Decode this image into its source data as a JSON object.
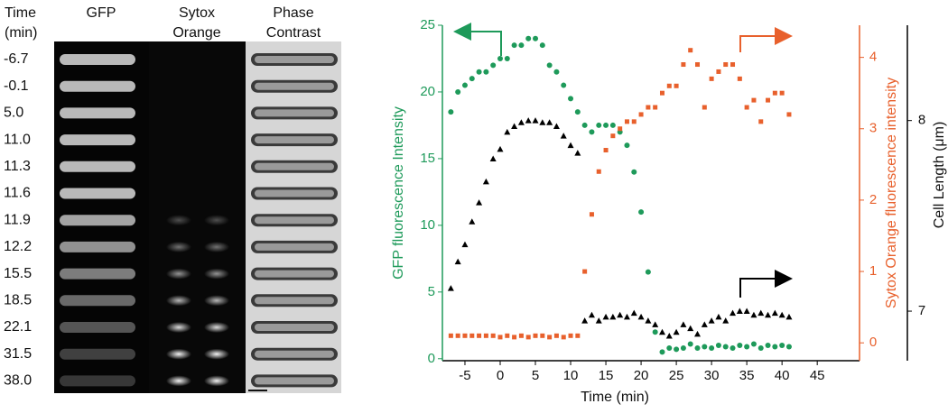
{
  "panel": {
    "time_header": [
      "Time",
      "(min)"
    ],
    "columns": [
      [
        "GFP"
      ],
      [
        "Sytox",
        "Orange"
      ],
      [
        "Phase",
        "Contrast"
      ]
    ],
    "times": [
      "-6.7",
      "-0.1",
      "5.0",
      "11.0",
      "11.3",
      "11.6",
      "11.9",
      "12.2",
      "15.5",
      "18.5",
      "22.1",
      "31.5",
      "38.0"
    ]
  },
  "chart_data": {
    "type": "scatter",
    "x_label": "Time (min)",
    "y_label": "GFP fluorescence Intensity",
    "y2_label": "Sytox Orange fluorescence intensity",
    "y3_label": "Cell Length (μm)",
    "xlim": [
      -8.2,
      51
    ],
    "xticks": [
      -5,
      0,
      5,
      10,
      15,
      20,
      25,
      30,
      35,
      40,
      45
    ],
    "ylim": [
      -0.15,
      25
    ],
    "yticks": [
      0,
      5,
      10,
      15,
      20,
      25
    ],
    "y2lim": [
      -0.25,
      4.45
    ],
    "y2ticks": [
      0,
      1,
      2,
      3,
      4
    ],
    "y3lim": [
      6.74,
      8.5
    ],
    "y3ticks": [
      7,
      8
    ],
    "x": [
      -7,
      -6,
      -5,
      -4,
      -3,
      -2,
      -1,
      0,
      1,
      2,
      3,
      4,
      5,
      6,
      7,
      8,
      9,
      10,
      11,
      12,
      13,
      14,
      15,
      16,
      17,
      18,
      19,
      20,
      21,
      22,
      23,
      24,
      25,
      26,
      27,
      28,
      29,
      30,
      31,
      32,
      33,
      34,
      35,
      36,
      37,
      38,
      39,
      40,
      41
    ],
    "series": [
      {
        "marker": "circle",
        "color": "#1e9a5a",
        "axis": "y",
        "values": [
          18.5,
          20,
          20.5,
          21,
          21.5,
          21.5,
          22,
          22.5,
          22.5,
          23.5,
          23.5,
          24,
          24,
          23.5,
          22,
          21.5,
          20.5,
          19.5,
          18.5,
          17.5,
          17,
          17.5,
          17.5,
          17.5,
          17,
          16,
          14,
          11,
          6.5,
          2,
          0.5,
          0.8,
          0.7,
          0.8,
          1.1,
          0.8,
          0.9,
          0.8,
          1,
          0.9,
          0.8,
          1,
          0.9,
          1.1,
          0.8,
          1,
          0.9,
          1,
          0.9
        ]
      },
      {
        "marker": "square",
        "color": "#e8602c",
        "axis": "y2",
        "values": [
          0.1,
          0.1,
          0.1,
          0.1,
          0.1,
          0.1,
          0.1,
          0.08,
          0.1,
          0.08,
          0.1,
          0.08,
          0.1,
          0.1,
          0.08,
          0.1,
          0.08,
          0.1,
          0.1,
          1.0,
          1.8,
          2.4,
          2.7,
          2.9,
          3.0,
          3.1,
          3.1,
          3.2,
          3.3,
          3.3,
          3.5,
          3.6,
          3.6,
          3.9,
          4.1,
          3.9,
          3.3,
          3.7,
          3.8,
          3.9,
          3.9,
          3.7,
          3.3,
          3.4,
          3.1,
          3.4,
          3.5,
          3.5,
          3.2
        ]
      },
      {
        "marker": "triangle",
        "color": "#000000",
        "axis": "y3",
        "values": [
          7.12,
          7.26,
          7.35,
          7.47,
          7.57,
          7.68,
          7.8,
          7.85,
          7.94,
          7.97,
          7.99,
          8.0,
          8.0,
          7.99,
          7.99,
          7.97,
          7.92,
          7.87,
          7.83,
          6.95,
          6.98,
          6.95,
          6.97,
          6.97,
          6.98,
          6.97,
          6.99,
          6.97,
          6.95,
          6.93,
          6.89,
          6.87,
          6.89,
          6.93,
          6.91,
          6.88,
          6.93,
          6.95,
          6.97,
          6.95,
          6.99,
          7.0,
          7.0,
          6.98,
          6.99,
          6.98,
          6.99,
          6.98,
          6.97
        ]
      }
    ]
  }
}
